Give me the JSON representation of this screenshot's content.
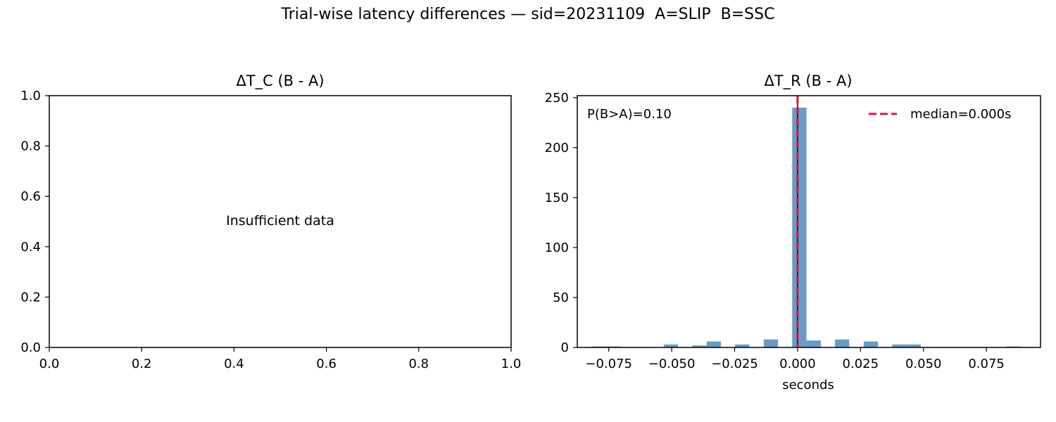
{
  "suptitle": "Trial-wise latency differences — sid=20231109  A=SLIP  B=SSC",
  "colors": {
    "bar": "#6a9bc8",
    "median": "#dc143c",
    "zero_line": "#000000"
  },
  "chart_data": [
    {
      "type": "empty",
      "title": "ΔT_C (B - A)",
      "xlabel": "",
      "ylabel": "",
      "message": "Insufficient data",
      "xlim": [
        0,
        1
      ],
      "ylim": [
        0,
        1
      ],
      "xticks": [
        "0.0",
        "0.2",
        "0.4",
        "0.6",
        "0.8",
        "1.0"
      ],
      "yticks": [
        "0.0",
        "0.2",
        "0.4",
        "0.6",
        "0.8",
        "1.0"
      ]
    },
    {
      "type": "bar",
      "subtype": "histogram",
      "title": "ΔT_R (B - A)",
      "xlabel": "seconds",
      "ylabel": "",
      "xlim": [
        -0.0875,
        0.0965
      ],
      "ylim": [
        0,
        252
      ],
      "bin_width": 0.00568,
      "bins": [
        {
          "x": -0.0787,
          "count": 1
        },
        {
          "x": -0.073,
          "count": 1
        },
        {
          "x": -0.0503,
          "count": 3
        },
        {
          "x": -0.039,
          "count": 2
        },
        {
          "x": -0.0333,
          "count": 6
        },
        {
          "x": -0.022,
          "count": 3
        },
        {
          "x": -0.0106,
          "count": 8
        },
        {
          "x": 0.0007,
          "count": 240
        },
        {
          "x": 0.0064,
          "count": 7
        },
        {
          "x": 0.0177,
          "count": 8
        },
        {
          "x": 0.0291,
          "count": 6
        },
        {
          "x": 0.0404,
          "count": 3
        },
        {
          "x": 0.0461,
          "count": 3
        },
        {
          "x": 0.0858,
          "count": 1
        }
      ],
      "xticks": [
        -0.075,
        -0.05,
        -0.025,
        0.0,
        0.025,
        0.05,
        0.075
      ],
      "xtick_labels": [
        "−0.075",
        "−0.050",
        "−0.025",
        "0.000",
        "0.025",
        "0.050",
        "0.075"
      ],
      "yticks": [
        0,
        50,
        100,
        150,
        200,
        250
      ],
      "ytick_labels": [
        "0",
        "50",
        "100",
        "150",
        "200",
        "250"
      ],
      "zero_line_x": 0.0,
      "median": 0.0,
      "legend": {
        "label": "median=0.000s",
        "placement": "upper right"
      },
      "annotation": "P(B>A)=0.10"
    }
  ]
}
